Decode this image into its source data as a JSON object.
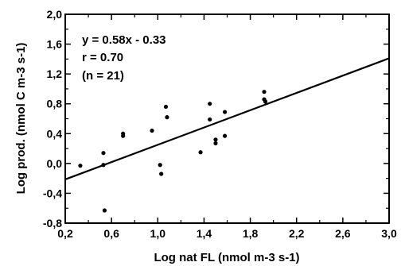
{
  "chart_data": {
    "type": "scatter",
    "xlabel": "Log nat FL (nmol m-3 s-1)",
    "ylabel": "Log prod. (nmol C m-3 s-1)",
    "xlim": [
      0.2,
      3.0
    ],
    "ylim": [
      -0.8,
      2.0
    ],
    "x_ticks": [
      "0,2",
      "0,6",
      "1,0",
      "1,4",
      "1,8",
      "2,2",
      "2,6",
      "3,0"
    ],
    "y_ticks": [
      "-0,8",
      "-0,4",
      "0,0",
      "0,4",
      "0,8",
      "1,2",
      "1,6",
      "2,0"
    ],
    "grid": false,
    "annotations": [
      "y = 0.58x - 0.33",
      "r = 0.70",
      "(n = 21)"
    ],
    "regression": {
      "slope": 0.58,
      "intercept": -0.33
    },
    "points": [
      {
        "x": 0.33,
        "y": -0.03
      },
      {
        "x": 0.53,
        "y": 0.14
      },
      {
        "x": 0.53,
        "y": -0.02
      },
      {
        "x": 0.54,
        "y": -0.63
      },
      {
        "x": 0.7,
        "y": 0.4
      },
      {
        "x": 0.7,
        "y": 0.37
      },
      {
        "x": 0.95,
        "y": 0.44
      },
      {
        "x": 1.02,
        "y": -0.02
      },
      {
        "x": 1.03,
        "y": -0.14
      },
      {
        "x": 1.07,
        "y": 0.76
      },
      {
        "x": 1.08,
        "y": 0.62
      },
      {
        "x": 1.37,
        "y": 0.15
      },
      {
        "x": 1.45,
        "y": 0.8
      },
      {
        "x": 1.45,
        "y": 0.59
      },
      {
        "x": 1.5,
        "y": 0.32
      },
      {
        "x": 1.5,
        "y": 0.27
      },
      {
        "x": 1.58,
        "y": 0.37
      },
      {
        "x": 1.58,
        "y": 0.69
      },
      {
        "x": 1.92,
        "y": 0.96
      },
      {
        "x": 1.92,
        "y": 0.86
      },
      {
        "x": 1.93,
        "y": 0.83
      }
    ]
  }
}
